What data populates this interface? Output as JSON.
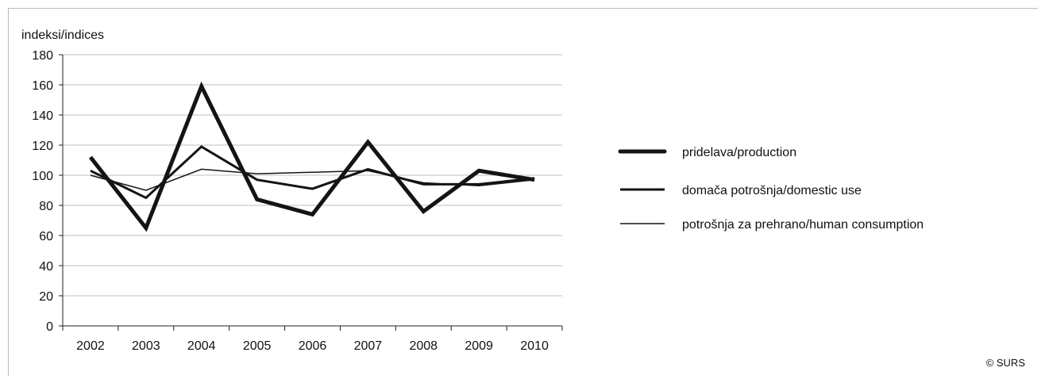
{
  "chart_data": {
    "type": "line",
    "ylabel": "indeksi/indices",
    "xlabel": "",
    "categories": [
      "2002",
      "2003",
      "2004",
      "2005",
      "2006",
      "2007",
      "2008",
      "2009",
      "2010"
    ],
    "ylim": [
      0,
      180
    ],
    "yticks": [
      0,
      20,
      40,
      60,
      80,
      100,
      120,
      140,
      160,
      180
    ],
    "grid": true,
    "legend_position": "right",
    "series": [
      {
        "name": "pridelava/production",
        "values": [
          112,
          65,
          159,
          84,
          74,
          122,
          76,
          103,
          97
        ]
      },
      {
        "name": "domača potrošnja/domestic use",
        "values": [
          103,
          85,
          119,
          97,
          91,
          104,
          94,
          94,
          98
        ]
      },
      {
        "name": "potrošnja za prehrano/human consumption",
        "values": [
          100,
          90,
          104,
          101,
          102,
          103,
          95,
          93,
          97
        ]
      }
    ]
  },
  "colors": {
    "line": "#141414",
    "grid": "#bfbfbf",
    "axis": "#222222"
  },
  "footer": {
    "credit": "© SURS"
  }
}
